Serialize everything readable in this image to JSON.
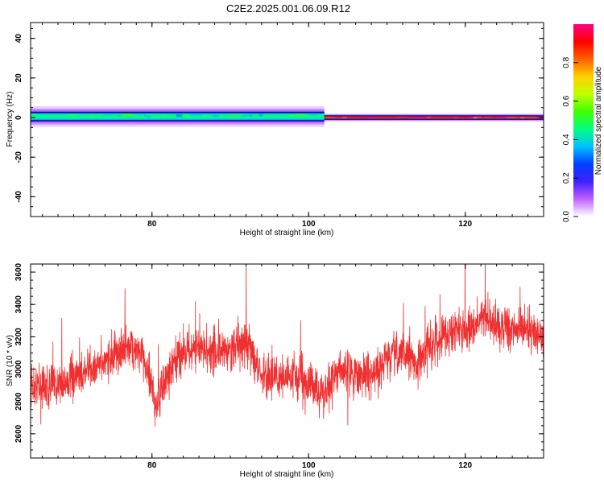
{
  "title": "C2E2.2025.001.06.09.R12",
  "chart_data": [
    {
      "type": "heatmap",
      "xlabel": "Height of straight line (km)",
      "ylabel": "Frequency (Hz)",
      "xlim": [
        64.5,
        130
      ],
      "ylim": [
        -50,
        48
      ],
      "x_ticks": [
        80,
        100,
        120
      ],
      "y_ticks": [
        40,
        20,
        0,
        -20,
        -40
      ],
      "colorbar": {
        "label": "Normalized spectral amplitude",
        "range": [
          0,
          1
        ],
        "ticks": [
          "0.0",
          "0.2",
          "0.4",
          "0.6",
          "0.8"
        ],
        "tick_values": [
          0,
          0.2,
          0.4,
          0.6,
          0.8
        ],
        "colors": [
          "#ffffff",
          "#c060ff",
          "#4020ff",
          "#0040ff",
          "#00c0ff",
          "#00ff80",
          "#40ff00",
          "#c0ff00",
          "#ffd000",
          "#ff6000",
          "#ff0000",
          "#ff0080"
        ]
      },
      "band_segments": [
        {
          "x_start": 64.5,
          "x_end": 102,
          "center_freq": 0.5,
          "half_width": 2.5,
          "amplitude": 0.45
        },
        {
          "x_start": 102,
          "x_end": 130,
          "center_freq": 0,
          "half_width": 0.8,
          "amplitude": 0.9
        }
      ]
    },
    {
      "type": "line",
      "xlabel": "Height of straight line (km)",
      "ylabel": "SNR (10 * v/v)",
      "xlim": [
        64.5,
        130
      ],
      "ylim": [
        2450,
        3650
      ],
      "x_ticks": [
        80,
        100,
        120
      ],
      "y_ticks": [
        3600,
        3400,
        3200,
        3000,
        2800,
        2600
      ],
      "color": "#f03030",
      "trend_x": [
        64.5,
        67,
        70,
        73,
        75,
        77,
        79,
        80.5,
        82,
        84,
        86,
        88,
        90,
        92,
        94,
        96,
        98,
        100,
        102,
        104,
        106,
        108,
        110,
        112,
        114,
        116,
        118,
        120,
        122,
        124,
        126,
        128,
        130
      ],
      "trend_y": [
        2900,
        2880,
        2940,
        3020,
        3080,
        3150,
        3070,
        2780,
        2950,
        3120,
        3130,
        3100,
        3120,
        3170,
        2960,
        2950,
        2960,
        2920,
        2840,
        3000,
        2980,
        2950,
        3060,
        3100,
        3050,
        3170,
        3230,
        3250,
        3300,
        3280,
        3240,
        3260,
        3180
      ],
      "noise_sd": 110
    }
  ]
}
